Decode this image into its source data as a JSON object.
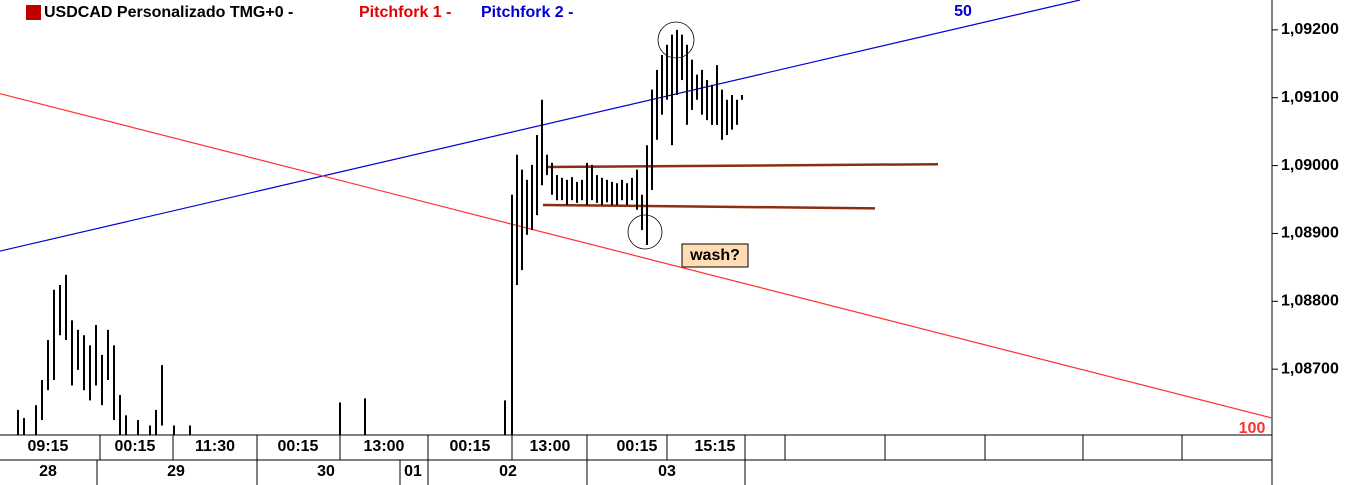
{
  "chart_data": {
    "type": "highlow",
    "title": "USDCAD Personalizado TMG+0 -",
    "subtitles": [
      {
        "text": "Pitchfork 1 -",
        "color": "#e00000"
      },
      {
        "text": "Pitchfork 2 -",
        "color": "#0000d0"
      }
    ],
    "color": "#000000",
    "xlim": [
      0,
      254.4
    ],
    "ylim": [
      1.08603,
      1.09244
    ],
    "yticks": [
      {
        "value": 1.087,
        "label": "1,08700"
      },
      {
        "value": 1.088,
        "label": "1,08800"
      },
      {
        "value": 1.089,
        "label": "1,08900"
      },
      {
        "value": 1.09,
        "label": "1,09000"
      },
      {
        "value": 1.091,
        "label": "1,09100"
      },
      {
        "value": 1.092,
        "label": "1,09200"
      }
    ],
    "xticks": [
      {
        "value": 9.6,
        "label": "09:15"
      },
      {
        "value": 27,
        "label": "00:15"
      },
      {
        "value": 43,
        "label": "11:30"
      },
      {
        "value": 59.6,
        "label": "00:15"
      },
      {
        "value": 76.8,
        "label": "13:00"
      },
      {
        "value": 94,
        "label": "00:15"
      },
      {
        "value": 110,
        "label": "13:00"
      },
      {
        "value": 127.4,
        "label": "00:15"
      },
      {
        "value": 143,
        "label": "15:15"
      }
    ],
    "date_ticks": [
      {
        "value": 9.6,
        "label": "28"
      },
      {
        "value": 35.2,
        "label": "29"
      },
      {
        "value": 65.2,
        "label": "30"
      },
      {
        "value": 82.6,
        "label": "01"
      },
      {
        "value": 101.6,
        "label": "02"
      },
      {
        "value": 133.4,
        "label": "03"
      }
    ],
    "x": [
      3.6,
      4.8,
      7.2,
      8.4,
      9.6,
      10.8,
      12,
      13.2,
      14.4,
      15.6,
      16.8,
      18,
      19.2,
      20.4,
      21.6,
      22.8,
      24,
      25.2,
      27.6,
      30,
      31.2,
      32.4,
      34.8,
      38,
      68,
      73,
      101,
      102.4,
      103.4,
      104.4,
      105.4,
      106.4,
      107.4,
      108.4,
      109.4,
      110.4,
      111.4,
      112.4,
      113.4,
      114.4,
      115.4,
      116.4,
      117.4,
      118.4,
      119.4,
      120.4,
      121.4,
      122.4,
      123.4,
      124.4,
      125.4,
      126.4,
      127.4,
      128.4,
      129.4,
      130.4,
      131.4,
      132.4,
      133.4,
      134.4,
      135.4,
      136.4,
      137.4,
      138.4,
      139.4,
      140.4,
      141.4,
      142.4,
      143.4,
      144.4,
      145.4,
      146.4,
      147.4,
      148.4
    ],
    "high": [
      1.0864,
      1.08628,
      1.08647,
      1.08684,
      1.08743,
      1.08817,
      1.08824,
      1.08839,
      1.08772,
      1.08758,
      1.0875,
      1.08735,
      1.08765,
      1.08721,
      1.08758,
      1.08735,
      1.08662,
      1.08632,
      1.08625,
      1.08617,
      1.0864,
      1.08706,
      1.08617,
      1.08617,
      1.08651,
      1.08657,
      1.08654,
      1.08957,
      1.09016,
      1.08994,
      1.08979,
      1.09001,
      1.09045,
      1.09097,
      1.09016,
      1.09004,
      1.08986,
      1.08982,
      1.08979,
      1.08983,
      1.08976,
      1.08979,
      1.09004,
      1.09001,
      1.08986,
      1.08982,
      1.08979,
      1.08976,
      1.08974,
      1.08979,
      1.08974,
      1.08982,
      1.08994,
      1.08957,
      1.0903,
      1.09112,
      1.09141,
      1.09163,
      1.09178,
      1.09193,
      1.092,
      1.09193,
      1.09178,
      1.09156,
      1.09134,
      1.09141,
      1.09126,
      1.09119,
      1.09148,
      1.09112,
      1.09097,
      1.09104,
      1.09097,
      1.09104
    ],
    "low": [
      1.08603,
      1.08603,
      1.08603,
      1.08625,
      1.08669,
      1.08684,
      1.0875,
      1.08743,
      1.08676,
      1.08699,
      1.08669,
      1.08654,
      1.08676,
      1.08647,
      1.08684,
      1.08625,
      1.08603,
      1.08603,
      1.08603,
      1.08603,
      1.08603,
      1.08617,
      1.08603,
      1.08603,
      1.08603,
      1.08603,
      1.08603,
      1.08603,
      1.08824,
      1.08846,
      1.08898,
      1.08905,
      1.08927,
      1.08971,
      1.08986,
      1.08957,
      1.08949,
      1.08949,
      1.08942,
      1.08949,
      1.08945,
      1.08949,
      1.08942,
      1.08949,
      1.08945,
      1.08942,
      1.08946,
      1.08942,
      1.08942,
      1.08949,
      1.08942,
      1.08949,
      1.08935,
      1.08905,
      1.08883,
      1.08964,
      1.09038,
      1.09075,
      1.09097,
      1.0903,
      1.09104,
      1.09126,
      1.0906,
      1.09082,
      1.09097,
      1.09075,
      1.09067,
      1.0906,
      1.0906,
      1.09038,
      1.09045,
      1.09053,
      1.0906,
      1.09097
    ],
    "lines": [
      {
        "color": "#0000d0",
        "x": [
          0,
          216
        ],
        "values": [
          1.08874,
          1.09244
        ],
        "label": "50"
      },
      {
        "color": "#ff3030",
        "x": [
          0,
          254.4
        ],
        "values": [
          1.09106,
          1.08628
        ],
        "label": "100"
      },
      {
        "color": "#8b2d10",
        "x": [
          109.6,
          187.6
        ],
        "values": [
          1.08998,
          1.09002
        ]
      },
      {
        "color": "#8b2d10",
        "x": [
          108.6,
          175
        ],
        "values": [
          1.08942,
          1.08937
        ]
      }
    ],
    "annotation": "wash?"
  }
}
